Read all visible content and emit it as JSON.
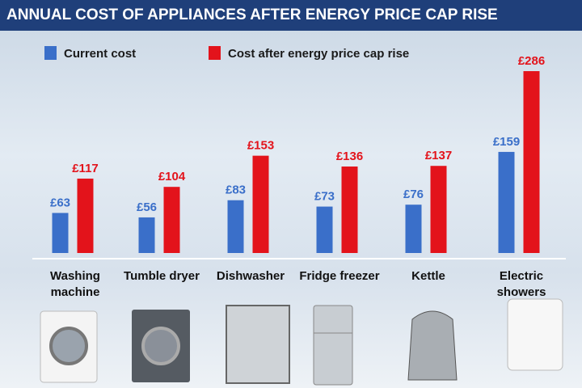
{
  "chart_data": {
    "type": "bar",
    "title": "ANNUAL COST OF APPLIANCES AFTER ENERGY PRICE CAP RISE",
    "categories": [
      "Washing machine",
      "Tumble dryer",
      "Dishwasher",
      "Fridge freezer",
      "Kettle",
      "Electric showers"
    ],
    "series": [
      {
        "name": "Current cost",
        "color": "#3a6fc9",
        "values": [
          63,
          56,
          83,
          73,
          76,
          159
        ],
        "value_labels": [
          "£63",
          "£56",
          "£83",
          "£73",
          "£76",
          "£159"
        ]
      },
      {
        "name": "Cost after energy price cap rise",
        "color": "#e3131b",
        "values": [
          117,
          104,
          153,
          136,
          137,
          286
        ],
        "value_labels": [
          "£117",
          "£104",
          "£153",
          "£136",
          "£137",
          "£286"
        ]
      }
    ]
  }
}
